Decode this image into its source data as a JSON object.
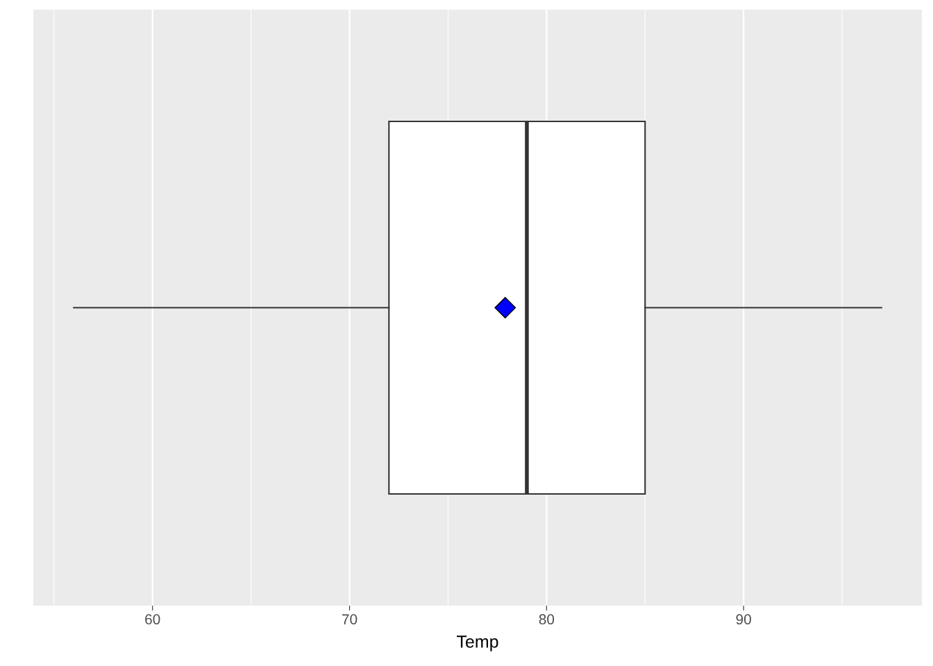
{
  "chart_data": {
    "type": "box",
    "orientation": "horizontal",
    "xlabel": "Temp",
    "categories": [
      null
    ],
    "boxes": [
      {
        "low": 56,
        "q1": 72,
        "median": 79,
        "q3": 85,
        "high": 97,
        "mean": 77.9
      }
    ],
    "color": "#ffffff",
    "xlim": [
      53.95,
      99.05
    ],
    "xticks": [
      60,
      70,
      80,
      90
    ],
    "grid": "x",
    "tick_labels": "x"
  }
}
